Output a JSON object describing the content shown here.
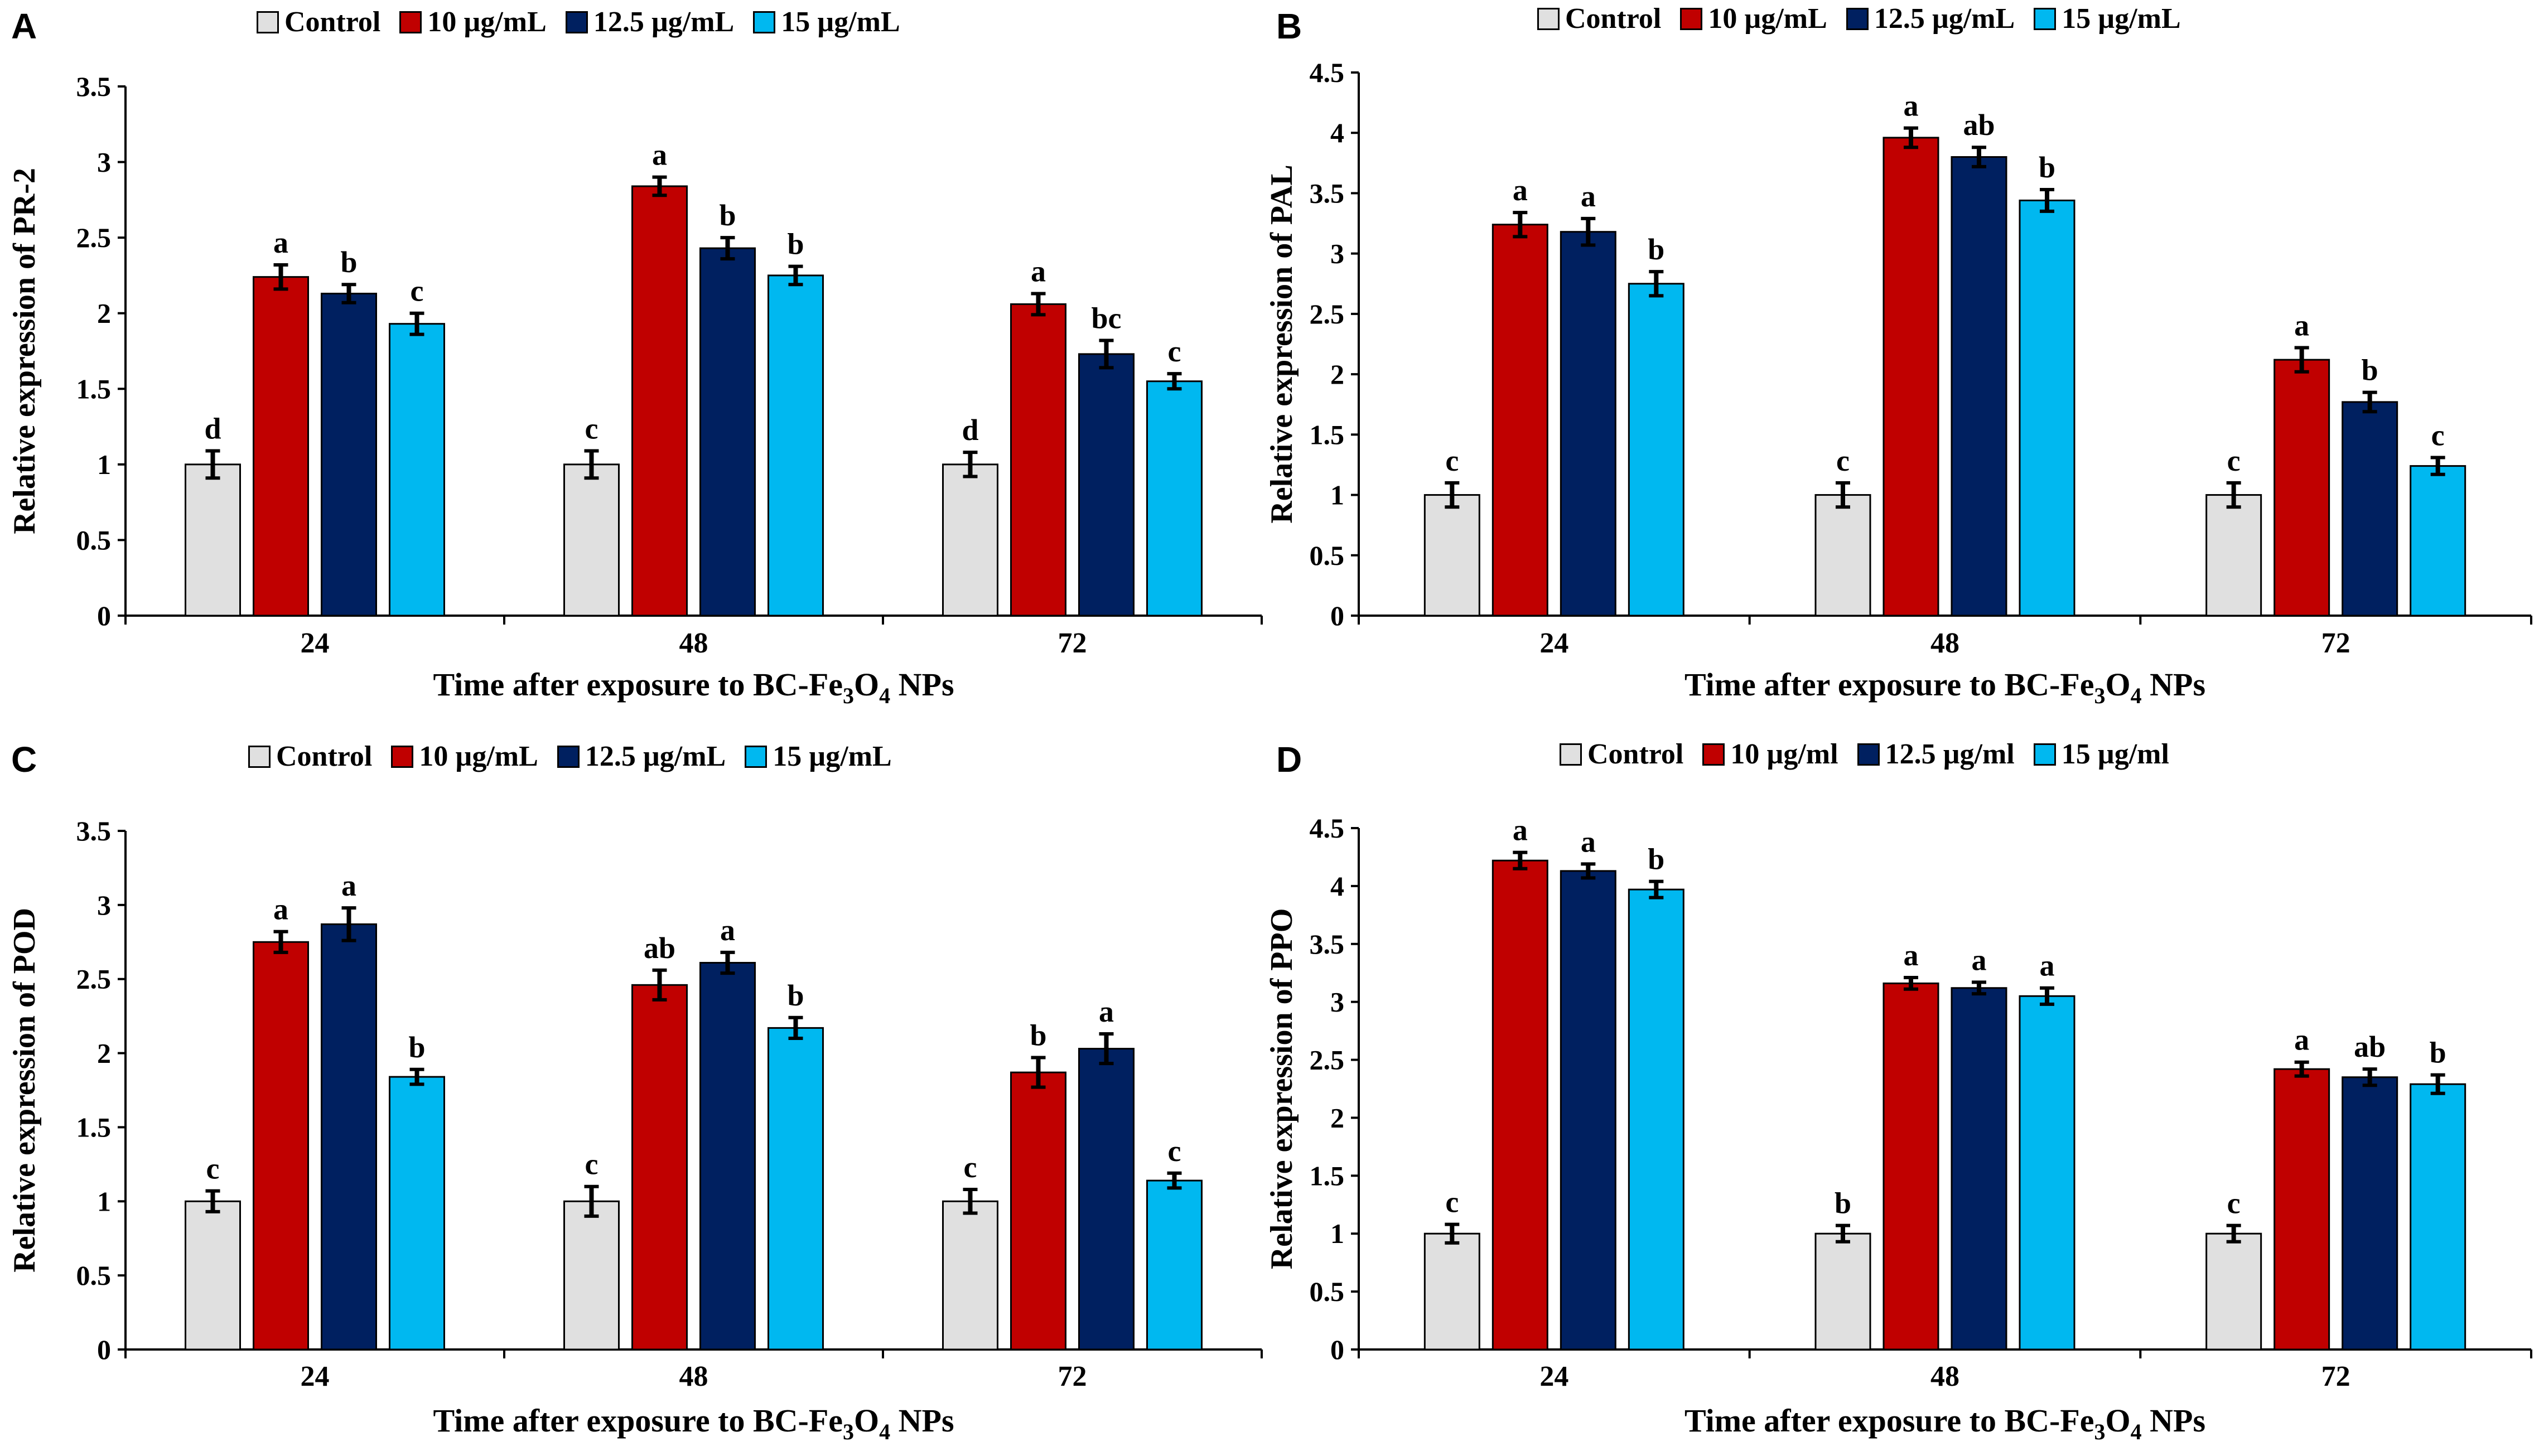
{
  "series_names": [
    "Control",
    "10 µg/mL",
    "12.5 µg/mL",
    "15 µg/mL"
  ],
  "series_colors": [
    "#e0e0e0",
    "#c00000",
    "#002060",
    "#00b8f0"
  ],
  "xlabel_prefix": "Time after exposure to BC-Fe",
  "xlabel_sub1": "3",
  "xlabel_mid": "O",
  "xlabel_sub2": "4",
  "xlabel_suffix": " NPs",
  "chart_data": [
    {
      "panel": "A",
      "type": "bar",
      "legend": [
        "Control",
        "10 µg/mL",
        "12.5 µg/mL",
        "15 µg/mL"
      ],
      "categories": [
        "24",
        "48",
        "72"
      ],
      "ylabel": "Relative expression of PR-2",
      "xlabel": "Time after exposure to BC-Fe3O4 NPs",
      "ylim": [
        0,
        3.5
      ],
      "yticks": [
        "0",
        "0.5",
        "1",
        "1.5",
        "2",
        "2.5",
        "3",
        "3.5"
      ],
      "series": [
        {
          "name": "Control",
          "values": [
            1.0,
            1.0,
            1.0
          ],
          "errors": [
            0.09,
            0.09,
            0.08
          ],
          "labels": [
            "d",
            "c",
            "d"
          ]
        },
        {
          "name": "10 µg/mL",
          "values": [
            2.24,
            2.84,
            2.06
          ],
          "errors": [
            0.08,
            0.06,
            0.07
          ],
          "labels": [
            "a",
            "a",
            "a"
          ]
        },
        {
          "name": "12.5 µg/mL",
          "values": [
            2.13,
            2.43,
            1.73
          ],
          "errors": [
            0.06,
            0.07,
            0.09
          ],
          "labels": [
            "b",
            "b",
            "bc"
          ]
        },
        {
          "name": "15 µg/mL",
          "values": [
            1.93,
            2.25,
            1.55
          ],
          "errors": [
            0.07,
            0.06,
            0.05
          ],
          "labels": [
            "c",
            "b",
            "c"
          ]
        }
      ]
    },
    {
      "panel": "B",
      "type": "bar",
      "legend": [
        "Control",
        "10 µg/mL",
        "12.5 µg/mL",
        "15 µg/mL"
      ],
      "categories": [
        "24",
        "48",
        "72"
      ],
      "ylabel": "Relative expression of PAL",
      "xlabel": "Time after exposure to BC-Fe3O4 NPs",
      "ylim": [
        0,
        4.5
      ],
      "yticks": [
        "0",
        "0.5",
        "1",
        "1.5",
        "2",
        "2.5",
        "3",
        "3.5",
        "4",
        "4.5"
      ],
      "series": [
        {
          "name": "Control",
          "values": [
            1.0,
            1.0,
            1.0
          ],
          "errors": [
            0.1,
            0.1,
            0.1
          ],
          "labels": [
            "c",
            "c",
            "c"
          ]
        },
        {
          "name": "10 µg/mL",
          "values": [
            3.24,
            3.96,
            2.12
          ],
          "errors": [
            0.1,
            0.08,
            0.1
          ],
          "labels": [
            "a",
            "a",
            "a"
          ]
        },
        {
          "name": "12.5 µg/mL",
          "values": [
            3.18,
            3.8,
            1.77
          ],
          "errors": [
            0.11,
            0.08,
            0.08
          ],
          "labels": [
            "a",
            "ab",
            "b"
          ]
        },
        {
          "name": "15 µg/mL",
          "values": [
            2.75,
            3.44,
            1.24
          ],
          "errors": [
            0.1,
            0.09,
            0.07
          ],
          "labels": [
            "b",
            "b",
            "c"
          ]
        }
      ]
    },
    {
      "panel": "C",
      "type": "bar",
      "legend": [
        "Control",
        "10 µg/mL",
        "12.5 µg/mL",
        "15 µg/mL"
      ],
      "categories": [
        "24",
        "48",
        "72"
      ],
      "ylabel": "Relative expression of POD",
      "xlabel": "Time after exposure to BC-Fe3O4 NPs",
      "ylim": [
        0,
        3.5
      ],
      "yticks": [
        "0",
        "0.5",
        "1",
        "1.5",
        "2",
        "2.5",
        "3",
        "3.5"
      ],
      "series": [
        {
          "name": "Control",
          "values": [
            1.0,
            1.0,
            1.0
          ],
          "errors": [
            0.07,
            0.1,
            0.08
          ],
          "labels": [
            "c",
            "c",
            "c"
          ]
        },
        {
          "name": "10 µg/mL",
          "values": [
            2.75,
            2.46,
            1.87
          ],
          "errors": [
            0.07,
            0.1,
            0.1
          ],
          "labels": [
            "a",
            "ab",
            "b"
          ]
        },
        {
          "name": "12.5 µg/mL",
          "values": [
            2.87,
            2.61,
            2.03
          ],
          "errors": [
            0.11,
            0.07,
            0.1
          ],
          "labels": [
            "a",
            "a",
            "a"
          ]
        },
        {
          "name": "15 µg/mL",
          "values": [
            1.84,
            2.17,
            1.14
          ],
          "errors": [
            0.05,
            0.07,
            0.05
          ],
          "labels": [
            "b",
            "b",
            "c"
          ]
        }
      ]
    },
    {
      "panel": "D",
      "type": "bar",
      "legend": [
        "Control",
        "10 µg/ml",
        "12.5 µg/ml",
        "15 µg/ml"
      ],
      "categories": [
        "24",
        "48",
        "72"
      ],
      "ylabel": "Relative expression of PPO",
      "xlabel": "Time after exposure to BC-Fe3O4 NPs",
      "ylim": [
        0,
        4.5
      ],
      "yticks": [
        "0",
        "0.5",
        "1",
        "1.5",
        "2",
        "2.5",
        "3",
        "3.5",
        "4",
        "4.5"
      ],
      "series": [
        {
          "name": "Control",
          "values": [
            1.0,
            1.0,
            1.0
          ],
          "errors": [
            0.08,
            0.07,
            0.07
          ],
          "labels": [
            "c",
            "b",
            "c"
          ]
        },
        {
          "name": "10 µg/ml",
          "values": [
            4.22,
            3.16,
            2.42
          ],
          "errors": [
            0.07,
            0.05,
            0.06
          ],
          "labels": [
            "a",
            "a",
            "a"
          ]
        },
        {
          "name": "12.5 µg/ml",
          "values": [
            4.13,
            3.12,
            2.35
          ],
          "errors": [
            0.06,
            0.05,
            0.07
          ],
          "labels": [
            "a",
            "a",
            "ab"
          ]
        },
        {
          "name": "15 µg/ml",
          "values": [
            3.97,
            3.05,
            2.29
          ],
          "errors": [
            0.07,
            0.07,
            0.08
          ],
          "labels": [
            "b",
            "a",
            "b"
          ]
        }
      ]
    }
  ]
}
